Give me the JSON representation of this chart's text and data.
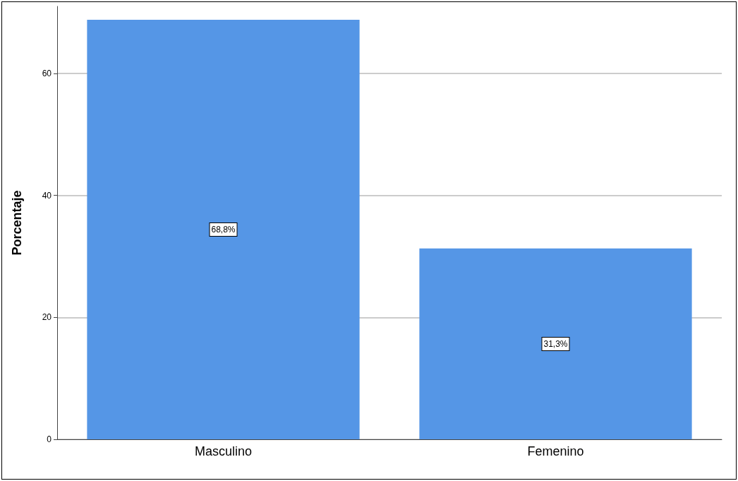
{
  "chart_data": {
    "type": "bar",
    "ylabel": "Porcentaje",
    "categories": [
      "Masculino",
      "Femenino"
    ],
    "values": [
      68.8,
      31.3
    ],
    "color": "#5596e6",
    "value_labels": [
      "68,8%",
      "31,3%"
    ],
    "ylim": [
      0,
      71
    ],
    "yticks": [
      0,
      20,
      40,
      60
    ],
    "grid": "y"
  }
}
